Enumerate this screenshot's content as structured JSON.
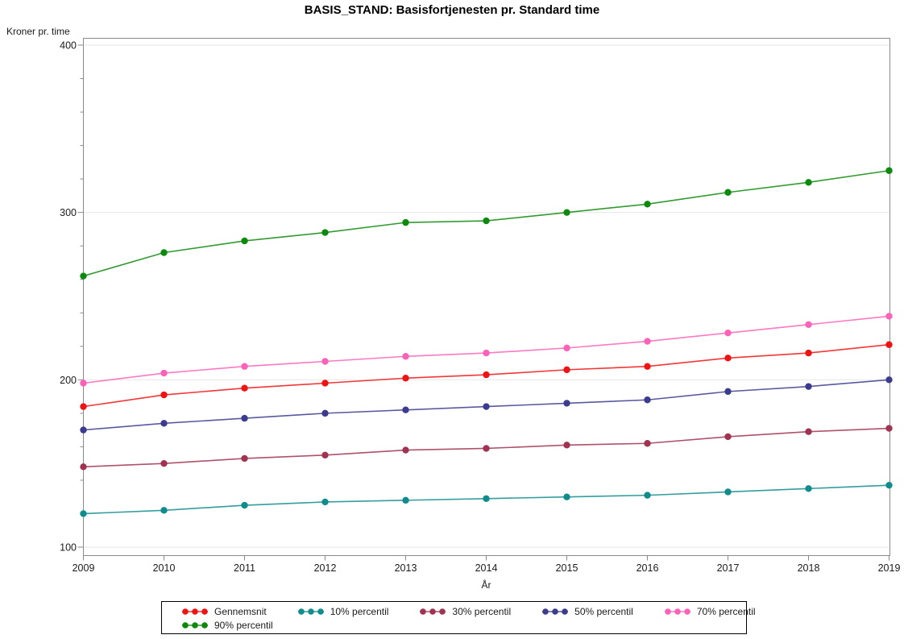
{
  "header": {
    "title": "BASIS_STAND: Basisfortjenesten pr. Standard time"
  },
  "chart_data": {
    "type": "line",
    "title": "BASIS_STAND: Basisfortjenesten pr. Standard time",
    "xlabel": "År",
    "ylabel": "Kroner pr. time",
    "x": [
      2009,
      2010,
      2011,
      2012,
      2013,
      2014,
      2015,
      2016,
      2017,
      2018,
      2019
    ],
    "ylim": [
      100,
      400
    ],
    "yticks": [
      100,
      200,
      300,
      400
    ],
    "minor_tick_step": 20,
    "grid": "horizontal-major",
    "legend_position": "bottom",
    "legend_wrap": 5,
    "axis_color": "#8A8A8A",
    "gridline_color": "#E7E7E7",
    "series": [
      {
        "name": "Gennemsnit",
        "color": "#EE1414",
        "values": [
          184,
          191,
          195,
          198,
          201,
          203,
          206,
          208,
          213,
          216,
          221
        ]
      },
      {
        "name": "10% percentil",
        "color": "#118C8C",
        "values": [
          120,
          122,
          125,
          127,
          128,
          129,
          130,
          131,
          133,
          135,
          137
        ]
      },
      {
        "name": "30% percentil",
        "color": "#A03352",
        "values": [
          148,
          150,
          153,
          155,
          158,
          159,
          161,
          162,
          166,
          169,
          171
        ]
      },
      {
        "name": "50% percentil",
        "color": "#3C3C8F",
        "values": [
          170,
          174,
          177,
          180,
          182,
          184,
          186,
          188,
          193,
          196,
          200
        ]
      },
      {
        "name": "70% percentil",
        "color": "#FB62B8",
        "values": [
          198,
          204,
          208,
          211,
          214,
          216,
          219,
          223,
          228,
          233,
          238
        ]
      },
      {
        "name": "90% percentil",
        "color": "#0D8A0D",
        "values": [
          262,
          276,
          283,
          288,
          294,
          295,
          300,
          305,
          312,
          318,
          325
        ]
      }
    ]
  }
}
